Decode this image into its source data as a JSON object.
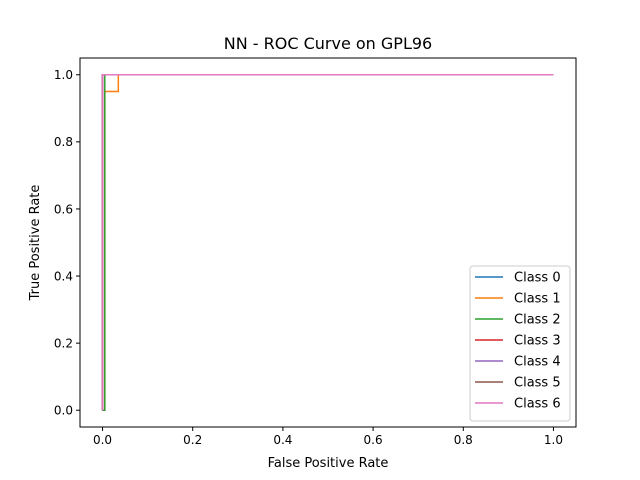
{
  "chart_data": {
    "type": "line",
    "title": "NN - ROC Curve on GPL96",
    "xlabel": "False Positive Rate",
    "ylabel": "True Positive Rate",
    "xlim": [
      -0.05,
      1.05
    ],
    "ylim": [
      -0.05,
      1.05
    ],
    "xticks": [
      0.0,
      0.2,
      0.4,
      0.6,
      0.8,
      1.0
    ],
    "yticks": [
      0.0,
      0.2,
      0.4,
      0.6,
      0.8,
      1.0
    ],
    "xtick_labels": [
      "0.0",
      "0.2",
      "0.4",
      "0.6",
      "0.8",
      "1.0"
    ],
    "ytick_labels": [
      "0.0",
      "0.2",
      "0.4",
      "0.6",
      "0.8",
      "1.0"
    ],
    "grid": false,
    "legend_position": "lower right",
    "series": [
      {
        "name": "Class 0",
        "color": "#1f77b4",
        "x": [
          0.0,
          0.0,
          0.0,
          1.0
        ],
        "y": [
          0.0,
          0.0,
          1.0,
          1.0
        ]
      },
      {
        "name": "Class 1",
        "color": "#ff7f0e",
        "x": [
          0.0,
          0.0,
          0.005,
          0.005,
          0.035,
          0.035,
          1.0
        ],
        "y": [
          0.0,
          0.0,
          0.0,
          0.95,
          0.95,
          1.0,
          1.0
        ]
      },
      {
        "name": "Class 2",
        "color": "#2ca02c",
        "x": [
          0.0,
          0.005,
          0.005,
          0.005,
          1.0
        ],
        "y": [
          0.0,
          0.0,
          0.333,
          1.0,
          1.0
        ]
      },
      {
        "name": "Class 3",
        "color": "#d62728",
        "x": [
          0.0,
          0.0,
          0.0,
          1.0
        ],
        "y": [
          0.0,
          0.0,
          1.0,
          1.0
        ]
      },
      {
        "name": "Class 4",
        "color": "#9467bd",
        "x": [
          0.0,
          0.0,
          0.0,
          1.0
        ],
        "y": [
          0.0,
          0.0,
          1.0,
          1.0
        ]
      },
      {
        "name": "Class 5",
        "color": "#8c564b",
        "x": [
          0.0,
          0.0,
          0.0,
          1.0
        ],
        "y": [
          0.0,
          0.0,
          1.0,
          1.0
        ]
      },
      {
        "name": "Class 6",
        "color": "#e377c2",
        "x": [
          0.0,
          0.0,
          0.0,
          1.0
        ],
        "y": [
          0.0,
          0.0,
          1.0,
          1.0
        ]
      }
    ]
  }
}
